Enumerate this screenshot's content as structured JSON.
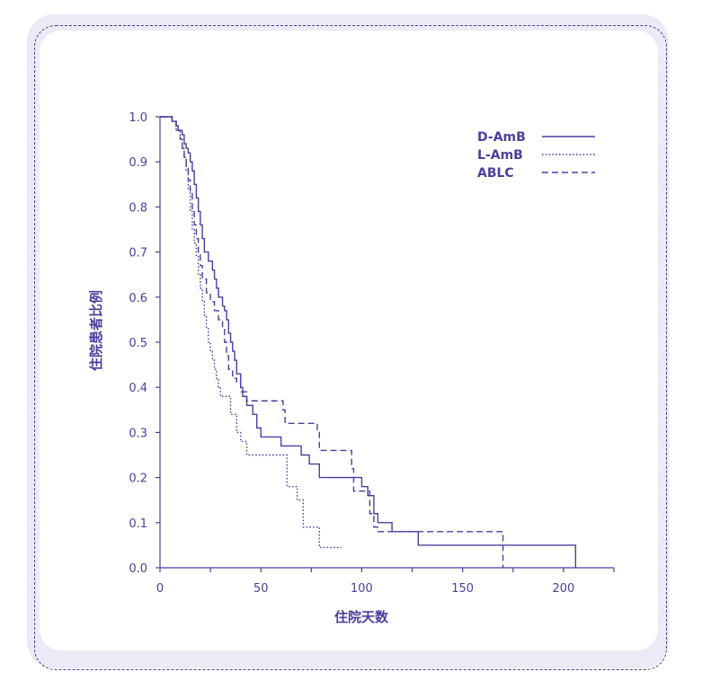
{
  "chart_data": {
    "type": "line",
    "xlabel": "住院天数",
    "ylabel": "住院患者比例",
    "xlim": [
      0,
      225
    ],
    "ylim": [
      0,
      1.0
    ],
    "xticks": [
      "0",
      "50",
      "100",
      "150",
      "200"
    ],
    "yticks": [
      "0.0",
      "0.1",
      "0.2",
      "0.3",
      "0.4",
      "0.5",
      "0.6",
      "0.7",
      "0.8",
      "0.9",
      "1.0"
    ],
    "legend_position": "top-right",
    "color": "#4b3f9e",
    "series": [
      {
        "name": "D-AmB",
        "style": "solid",
        "points": [
          [
            0,
            1.0
          ],
          [
            4,
            1.0
          ],
          [
            6,
            0.99
          ],
          [
            8,
            0.98
          ],
          [
            9,
            0.97
          ],
          [
            11,
            0.96
          ],
          [
            12,
            0.94
          ],
          [
            13,
            0.93
          ],
          [
            14,
            0.92
          ],
          [
            15,
            0.9
          ],
          [
            16,
            0.88
          ],
          [
            17,
            0.85
          ],
          [
            18,
            0.82
          ],
          [
            19,
            0.79
          ],
          [
            20,
            0.76
          ],
          [
            21,
            0.73
          ],
          [
            22,
            0.7
          ],
          [
            24,
            0.68
          ],
          [
            26,
            0.66
          ],
          [
            27,
            0.64
          ],
          [
            28,
            0.62
          ],
          [
            29,
            0.6
          ],
          [
            31,
            0.58
          ],
          [
            32,
            0.57
          ],
          [
            33,
            0.55
          ],
          [
            34,
            0.52
          ],
          [
            35,
            0.5
          ],
          [
            36,
            0.48
          ],
          [
            37,
            0.46
          ],
          [
            38,
            0.43
          ],
          [
            40,
            0.4
          ],
          [
            41,
            0.38
          ],
          [
            43,
            0.36
          ],
          [
            46,
            0.34
          ],
          [
            48,
            0.31
          ],
          [
            50,
            0.29
          ],
          [
            60,
            0.27
          ],
          [
            70,
            0.25
          ],
          [
            74,
            0.23
          ],
          [
            79,
            0.2
          ],
          [
            100,
            0.18
          ],
          [
            103,
            0.16
          ],
          [
            106,
            0.12
          ],
          [
            108,
            0.1
          ],
          [
            115,
            0.08
          ],
          [
            128,
            0.05
          ],
          [
            206,
            0.05
          ],
          [
            206,
            0.0
          ]
        ]
      },
      {
        "name": "L-AmB",
        "style": "dotted",
        "points": [
          [
            0,
            1.0
          ],
          [
            6,
            0.99
          ],
          [
            8,
            0.97
          ],
          [
            10,
            0.95
          ],
          [
            11,
            0.93
          ],
          [
            12,
            0.91
          ],
          [
            13,
            0.88
          ],
          [
            14,
            0.84
          ],
          [
            15,
            0.79
          ],
          [
            16,
            0.75
          ],
          [
            17,
            0.72
          ],
          [
            18,
            0.69
          ],
          [
            19,
            0.65
          ],
          [
            20,
            0.62
          ],
          [
            21,
            0.59
          ],
          [
            22,
            0.56
          ],
          [
            23,
            0.53
          ],
          [
            24,
            0.5
          ],
          [
            25,
            0.48
          ],
          [
            26,
            0.46
          ],
          [
            27,
            0.44
          ],
          [
            28,
            0.42
          ],
          [
            29,
            0.4
          ],
          [
            30,
            0.38
          ],
          [
            35,
            0.34
          ],
          [
            38,
            0.3
          ],
          [
            40,
            0.28
          ],
          [
            43,
            0.25
          ],
          [
            61,
            0.25
          ],
          [
            63,
            0.18
          ],
          [
            68,
            0.15
          ],
          [
            71,
            0.09
          ],
          [
            79,
            0.09
          ],
          [
            79,
            0.045
          ],
          [
            90,
            0.045
          ]
        ]
      },
      {
        "name": "ABLC",
        "style": "dashed",
        "points": [
          [
            0,
            1.0
          ],
          [
            6,
            0.99
          ],
          [
            8,
            0.97
          ],
          [
            10,
            0.95
          ],
          [
            11,
            0.93
          ],
          [
            12,
            0.91
          ],
          [
            13,
            0.89
          ],
          [
            14,
            0.86
          ],
          [
            15,
            0.83
          ],
          [
            16,
            0.79
          ],
          [
            17,
            0.76
          ],
          [
            18,
            0.73
          ],
          [
            19,
            0.7
          ],
          [
            20,
            0.67
          ],
          [
            21,
            0.64
          ],
          [
            23,
            0.61
          ],
          [
            25,
            0.59
          ],
          [
            27,
            0.57
          ],
          [
            29,
            0.55
          ],
          [
            31,
            0.53
          ],
          [
            32,
            0.5
          ],
          [
            33,
            0.47
          ],
          [
            34,
            0.44
          ],
          [
            36,
            0.42
          ],
          [
            38,
            0.41
          ],
          [
            40,
            0.39
          ],
          [
            43,
            0.37
          ],
          [
            47,
            0.37
          ],
          [
            59,
            0.37
          ],
          [
            61,
            0.35
          ],
          [
            62,
            0.32
          ],
          [
            77,
            0.32
          ],
          [
            78,
            0.3
          ],
          [
            79,
            0.26
          ],
          [
            94,
            0.26
          ],
          [
            95,
            0.22
          ],
          [
            96,
            0.17
          ],
          [
            103,
            0.17
          ],
          [
            104,
            0.12
          ],
          [
            106,
            0.09
          ],
          [
            108,
            0.08
          ],
          [
            170,
            0.08
          ],
          [
            170,
            0.0
          ]
        ]
      }
    ]
  }
}
